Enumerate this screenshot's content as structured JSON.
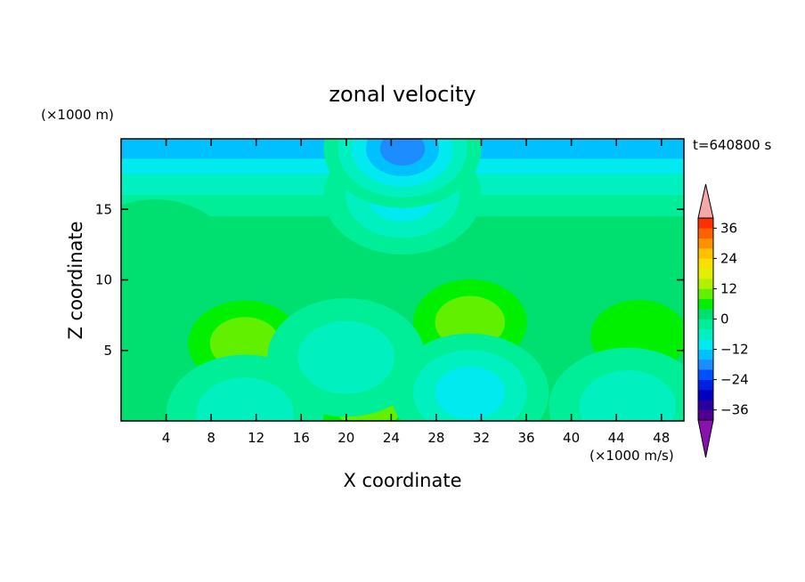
{
  "chart_data": {
    "type": "heatmap",
    "title": "zonal velocity",
    "xlabel": "X coordinate",
    "ylabel": "Z coordinate",
    "x_unit": "(×1000 m/s)",
    "y_unit": "(×1000 m)",
    "time_label": "t=640800 s",
    "xlim": [
      0,
      50
    ],
    "ylim": [
      0,
      20
    ],
    "x_ticks": [
      4,
      8,
      12,
      16,
      20,
      24,
      28,
      32,
      36,
      40,
      44,
      48
    ],
    "y_ticks": [
      5,
      10,
      15
    ],
    "colorbar": {
      "min": -40,
      "max": 40,
      "step": 4,
      "tick_values": [
        36,
        24,
        12,
        0,
        -12,
        -24,
        -36
      ],
      "tick_labels": [
        "36",
        "24",
        "12",
        "0",
        "−12",
        "−24",
        "−36"
      ],
      "colors_low_to_high": [
        "#500090",
        "#2a00a0",
        "#0000c0",
        "#0020e0",
        "#0050ff",
        "#1c8cff",
        "#00c0ff",
        "#00eaf0",
        "#00f0c0",
        "#00ee98",
        "#00e070",
        "#00f000",
        "#60f000",
        "#b0f000",
        "#e0f000",
        "#f8e000",
        "#ffc000",
        "#ff9000",
        "#ff6000",
        "#ff3000"
      ],
      "under_color": "#8a10b0",
      "over_color": "#f4a8a8"
    },
    "field_features": [
      {
        "x": 11,
        "z": 5.5,
        "value": 12
      },
      {
        "x": 31,
        "z": 7,
        "value": 12
      },
      {
        "x": 46,
        "z": 6,
        "value": 8
      },
      {
        "x": 22,
        "z": 1.3,
        "value": 10
      },
      {
        "x": 3,
        "z": 11.5,
        "value": 4
      },
      {
        "x": 20,
        "z": 4.5,
        "value": -6
      },
      {
        "x": 31,
        "z": 2,
        "value": -10
      },
      {
        "x": 11,
        "z": 0.5,
        "value": -8
      },
      {
        "x": 45,
        "z": 1,
        "value": -6
      },
      {
        "x": 25,
        "z": 16,
        "value": -10
      },
      {
        "x": 25,
        "z": 19.3,
        "value": -18
      }
    ]
  }
}
